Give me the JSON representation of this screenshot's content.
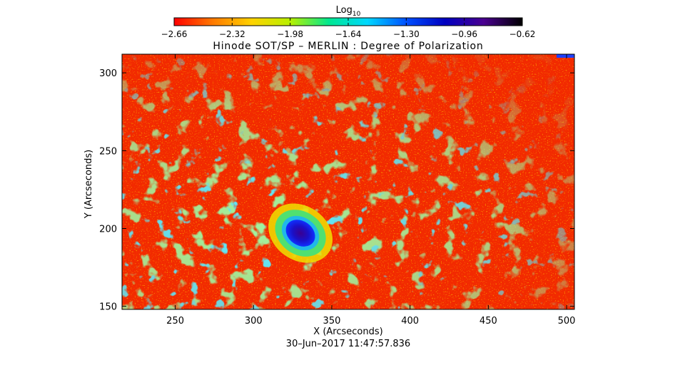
{
  "chart_data": {
    "type": "heatmap",
    "title": "Hinode SOT/SP – MERLIN : Degree of Polarization",
    "colorbar": {
      "label_main": "Log",
      "label_sub": "10",
      "range": [
        -2.66,
        -0.62
      ],
      "ticks": [
        -2.66,
        -2.32,
        -1.98,
        -1.64,
        -1.3,
        -0.96,
        -0.62
      ],
      "tick_labels": [
        "−2.66",
        "−2.32",
        "−1.98",
        "−1.64",
        "−1.30",
        "−0.96",
        "−0.62"
      ],
      "colors": [
        "#ff0000",
        "#ff7a00",
        "#ffd200",
        "#b8f000",
        "#00e890",
        "#00d8ff",
        "#0050ff",
        "#0000c0",
        "#4a0090",
        "#000000"
      ]
    },
    "xlabel": "X (Arcseconds)",
    "ylabel": "Y (Arcseconds)",
    "xlim": [
      216,
      505
    ],
    "ylim": [
      148,
      312
    ],
    "x_ticks": [
      250,
      300,
      350,
      400,
      450,
      500
    ],
    "y_ticks": [
      150,
      200,
      250,
      300
    ],
    "x_tick_labels": [
      "250",
      "300",
      "350",
      "400",
      "450",
      "500"
    ],
    "y_tick_labels": [
      "150",
      "200",
      "250",
      "300"
    ],
    "features": [
      {
        "name": "sunspot-umbra",
        "x": 330,
        "y": 197,
        "log10_value": -0.9
      },
      {
        "name": "penumbra-ring",
        "x": 330,
        "y": 197,
        "log10_value": -1.5
      }
    ],
    "grid": false,
    "timestamp": "30–Jun–2017 11:47:57.836"
  }
}
